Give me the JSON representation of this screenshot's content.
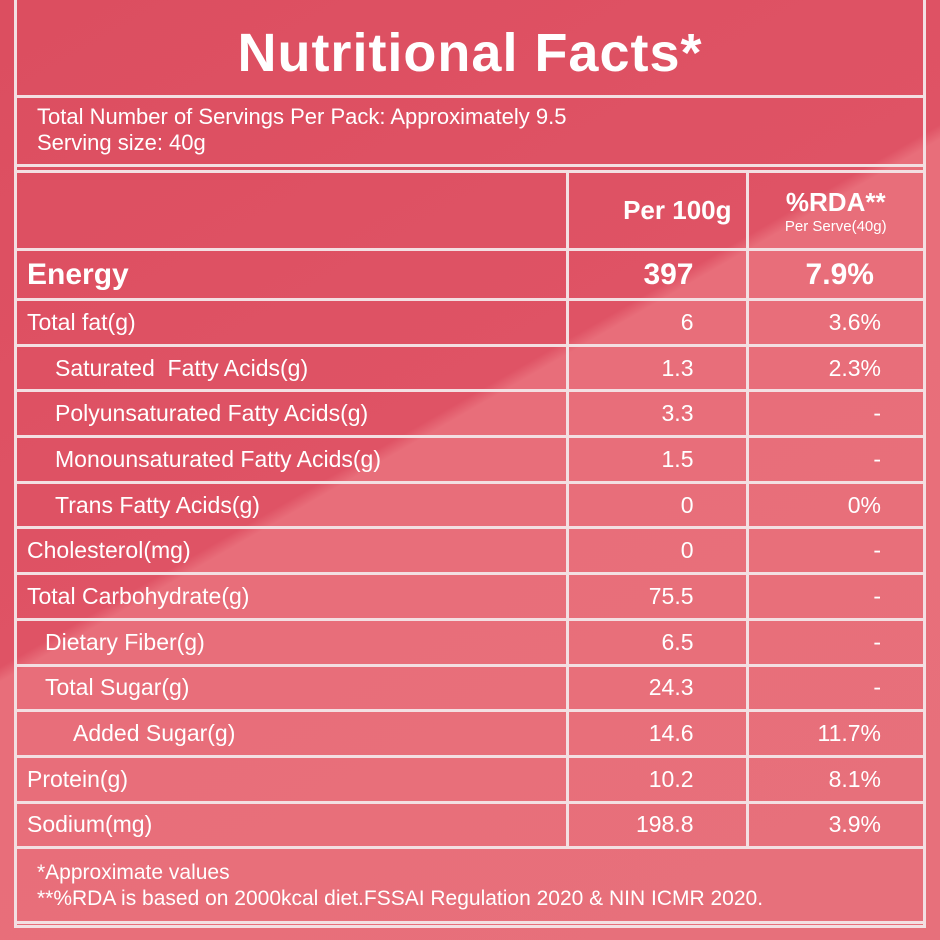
{
  "title": "Nutritional Facts*",
  "servings": "Total Number of Servings Per Pack: Approximately 9.5",
  "serving_size": "Serving size: 40g",
  "header": {
    "per100": "Per 100g",
    "rda": "%RDA**",
    "rda_sub": "Per Serve(40g)"
  },
  "energy": {
    "label": "Energy",
    "per100": "397",
    "rda": "7.9%"
  },
  "rows": [
    {
      "label": "Total fat(g)",
      "per100": "6",
      "rda": "3.6%"
    },
    {
      "label": "Saturated  Fatty Acids(g)",
      "per100": "1.3",
      "rda": "2.3%"
    },
    {
      "label": "Polyunsaturated Fatty Acids(g)",
      "per100": "3.3",
      "rda": "-"
    },
    {
      "label": "Monounsaturated Fatty Acids(g)",
      "per100": "1.5",
      "rda": "-"
    },
    {
      "label": "Trans Fatty Acids(g)",
      "per100": "0",
      "rda": "0%"
    },
    {
      "label": "Cholesterol(mg)",
      "per100": "0",
      "rda": "-"
    },
    {
      "label": "Total Carbohydrate(g)",
      "per100": "75.5",
      "rda": "-"
    },
    {
      "label": "Dietary Fiber(g)",
      "per100": "6.5",
      "rda": "-"
    },
    {
      "label": "Total Sugar(g)",
      "per100": "24.3",
      "rda": "-"
    },
    {
      "label": "Added Sugar(g)",
      "per100": "14.6",
      "rda": "11.7%"
    },
    {
      "label": "Protein(g)",
      "per100": "10.2",
      "rda": "8.1%"
    },
    {
      "label": "Sodium(mg)",
      "per100": "198.8",
      "rda": "3.9%"
    }
  ],
  "footnotes": [
    "*Approximate values",
    "**%RDA is based on 2000kcal diet.FSSAI Regulation 2020 & NIN ICMR 2020."
  ]
}
